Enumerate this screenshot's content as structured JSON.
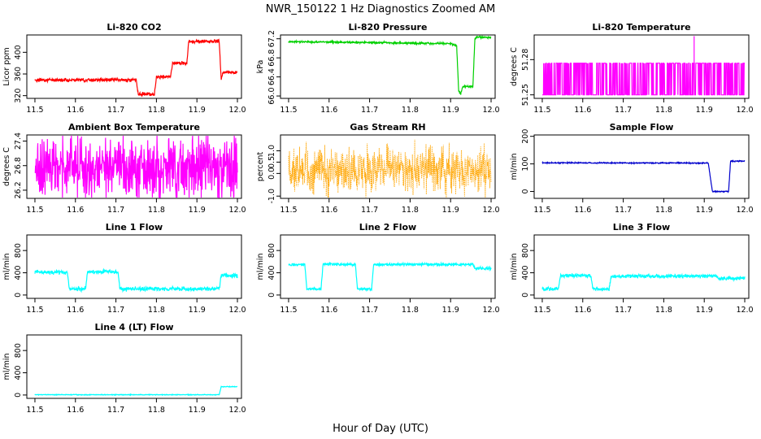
{
  "figure": {
    "title": "NWR_150122  1 Hz Diagnostics Zoomed AM",
    "xlabel": "Hour of Day (UTC)"
  },
  "chart_data": [
    {
      "type": "line",
      "title": "Li-820 CO2",
      "ylabel": "Licor ppm",
      "color": "#ff0000",
      "xlim": [
        11.48,
        12.01
      ],
      "ylim": [
        315,
        432
      ],
      "xticks": [
        "11.5",
        "11.6",
        "11.7",
        "11.8",
        "11.9",
        "12.0"
      ],
      "yticks": [
        {
          "v": 320,
          "label": "320"
        },
        {
          "v": 360,
          "label": "360"
        },
        {
          "v": 400,
          "label": "400"
        }
      ],
      "x": [
        11.5,
        11.75,
        11.755,
        11.795,
        11.8,
        11.835,
        11.84,
        11.875,
        11.88,
        11.955,
        11.96,
        11.965,
        12.0
      ],
      "y": [
        349,
        349,
        323,
        323,
        355,
        355,
        380,
        380,
        420,
        420,
        350,
        363,
        363
      ],
      "noise": 1.5
    },
    {
      "type": "line",
      "title": "Li-820 Pressure",
      "ylabel": "kPa",
      "color": "#00d000",
      "xlim": [
        11.48,
        12.01
      ],
      "ylim": [
        65.95,
        67.28
      ],
      "xticks": [
        "11.5",
        "11.6",
        "11.7",
        "11.8",
        "11.9",
        "12.0"
      ],
      "yticks": [
        {
          "v": 66.0,
          "label": "66.0"
        },
        {
          "v": 66.4,
          "label": "66.4"
        },
        {
          "v": 66.8,
          "label": "66.8"
        },
        {
          "v": 67.2,
          "label": "67.2"
        }
      ],
      "x": [
        11.5,
        11.9,
        11.915,
        11.92,
        11.925,
        11.93,
        11.955,
        11.96,
        11.965,
        12.0
      ],
      "y": [
        67.14,
        67.1,
        67.05,
        66.1,
        66.05,
        66.2,
        66.2,
        67.2,
        67.24,
        67.22
      ],
      "noise": 0.01
    },
    {
      "type": "line",
      "title": "Li-820 Temperature",
      "ylabel": "degrees C",
      "color": "#ff00ff",
      "xlim": [
        11.48,
        12.01
      ],
      "ylim": [
        51.247,
        51.301
      ],
      "xticks": [
        "11.5",
        "11.6",
        "11.7",
        "11.8",
        "11.9",
        "12.0"
      ],
      "yticks": [
        {
          "v": 51.25,
          "label": "51.25"
        },
        {
          "v": 51.28,
          "label": "51.28"
        }
      ],
      "x": [
        11.5,
        12.0
      ],
      "y": [
        51.25,
        51.277
      ],
      "square_wave": true,
      "spike": {
        "x": 11.875,
        "y": 51.3
      },
      "noise": 0
    },
    {
      "type": "line",
      "title": "Ambient Box Temperature",
      "ylabel": "degrees C",
      "color": "#ff00ff",
      "xlim": [
        11.48,
        12.01
      ],
      "ylim": [
        26.0,
        27.55
      ],
      "xticks": [
        "11.5",
        "11.6",
        "11.7",
        "11.8",
        "11.9",
        "12.0"
      ],
      "yticks": [
        {
          "v": 26.2,
          "label": "26.2"
        },
        {
          "v": 26.8,
          "label": "26.8"
        },
        {
          "v": 27.4,
          "label": "27.4"
        }
      ],
      "x": [
        11.5,
        12.0
      ],
      "y": [
        26.75,
        26.75
      ],
      "noise": 0.35
    },
    {
      "type": "line",
      "title": "Gas Stream RH",
      "ylabel": "percent",
      "color": "#ffa500",
      "xlim": [
        11.48,
        12.01
      ],
      "ylim": [
        -1.1,
        1.7
      ],
      "xticks": [
        "11.5",
        "11.6",
        "11.7",
        "11.8",
        "11.9",
        "12.0"
      ],
      "yticks": [
        {
          "v": -1.0,
          "label": "-1.0"
        },
        {
          "v": 0.0,
          "label": "0.0"
        },
        {
          "v": 0.5,
          "label": "0.5"
        },
        {
          "v": 1.0,
          "label": "1.0"
        }
      ],
      "x": [
        11.5,
        12.0
      ],
      "y": [
        0.15,
        0.15
      ],
      "noise": 0.5,
      "points": true
    },
    {
      "type": "line",
      "title": "Sample Flow",
      "ylabel": "ml/min",
      "color": "#0000cc",
      "xlim": [
        11.48,
        12.01
      ],
      "ylim": [
        -25,
        205
      ],
      "xticks": [
        "11.5",
        "11.6",
        "11.7",
        "11.8",
        "11.9",
        "12.0"
      ],
      "yticks": [
        {
          "v": 0,
          "label": "0"
        },
        {
          "v": 100,
          "label": "100"
        },
        {
          "v": 200,
          "label": "200"
        }
      ],
      "x": [
        11.5,
        11.91,
        11.92,
        11.96,
        11.965,
        12.0
      ],
      "y": [
        104,
        103,
        0,
        0,
        110,
        110
      ],
      "noise": 1
    },
    {
      "type": "line",
      "title": "Line 1 Flow",
      "ylabel": "ml/min",
      "color": "#00ffff",
      "xlim": [
        11.48,
        12.01
      ],
      "ylim": [
        -60,
        1080
      ],
      "xticks": [
        "11.5",
        "11.6",
        "11.7",
        "11.8",
        "11.9",
        "12.0"
      ],
      "yticks": [
        {
          "v": 0,
          "label": "0"
        },
        {
          "v": 400,
          "label": "400"
        },
        {
          "v": 800,
          "label": "800"
        }
      ],
      "x": [
        11.5,
        11.58,
        11.585,
        11.625,
        11.63,
        11.705,
        11.71,
        11.955,
        11.96,
        12.0
      ],
      "y": [
        410,
        410,
        110,
        110,
        420,
        420,
        110,
        110,
        350,
        350
      ],
      "noise": 18
    },
    {
      "type": "line",
      "title": "Line 2 Flow",
      "ylabel": "ml/min",
      "color": "#00ffff",
      "xlim": [
        11.48,
        12.01
      ],
      "ylim": [
        -60,
        1080
      ],
      "xticks": [
        "11.5",
        "11.6",
        "11.7",
        "11.8",
        "11.9",
        "12.0"
      ],
      "yticks": [
        {
          "v": 0,
          "label": "0"
        },
        {
          "v": 400,
          "label": "400"
        },
        {
          "v": 800,
          "label": "800"
        }
      ],
      "x": [
        11.5,
        11.54,
        11.545,
        11.58,
        11.585,
        11.665,
        11.67,
        11.705,
        11.71,
        11.955,
        11.96,
        12.0
      ],
      "y": [
        550,
        550,
        110,
        110,
        550,
        550,
        110,
        110,
        550,
        550,
        480,
        480
      ],
      "noise": 12
    },
    {
      "type": "line",
      "title": "Line 3 Flow",
      "ylabel": "ml/min",
      "color": "#00ffff",
      "xlim": [
        11.48,
        12.01
      ],
      "ylim": [
        -60,
        1080
      ],
      "xticks": [
        "11.5",
        "11.6",
        "11.7",
        "11.8",
        "11.9",
        "12.0"
      ],
      "yticks": [
        {
          "v": 0,
          "label": "0"
        },
        {
          "v": 400,
          "label": "400"
        },
        {
          "v": 800,
          "label": "800"
        }
      ],
      "x": [
        11.5,
        11.54,
        11.545,
        11.62,
        11.625,
        11.665,
        11.67,
        11.93,
        11.935,
        12.0
      ],
      "y": [
        110,
        110,
        350,
        350,
        110,
        110,
        340,
        340,
        300,
        300
      ],
      "noise": 16
    },
    {
      "type": "line",
      "title": "Line 4 (LT) Flow",
      "ylabel": "ml/min",
      "color": "#00ffff",
      "xlim": [
        11.48,
        12.01
      ],
      "ylim": [
        -60,
        1080
      ],
      "xticks": [
        "11.5",
        "11.6",
        "11.7",
        "11.8",
        "11.9",
        "12.0"
      ],
      "yticks": [
        {
          "v": 0,
          "label": "0"
        },
        {
          "v": 400,
          "label": "400"
        },
        {
          "v": 800,
          "label": "800"
        }
      ],
      "x": [
        11.5,
        11.955,
        11.96,
        12.0
      ],
      "y": [
        5,
        5,
        150,
        150
      ],
      "noise": 3
    }
  ]
}
